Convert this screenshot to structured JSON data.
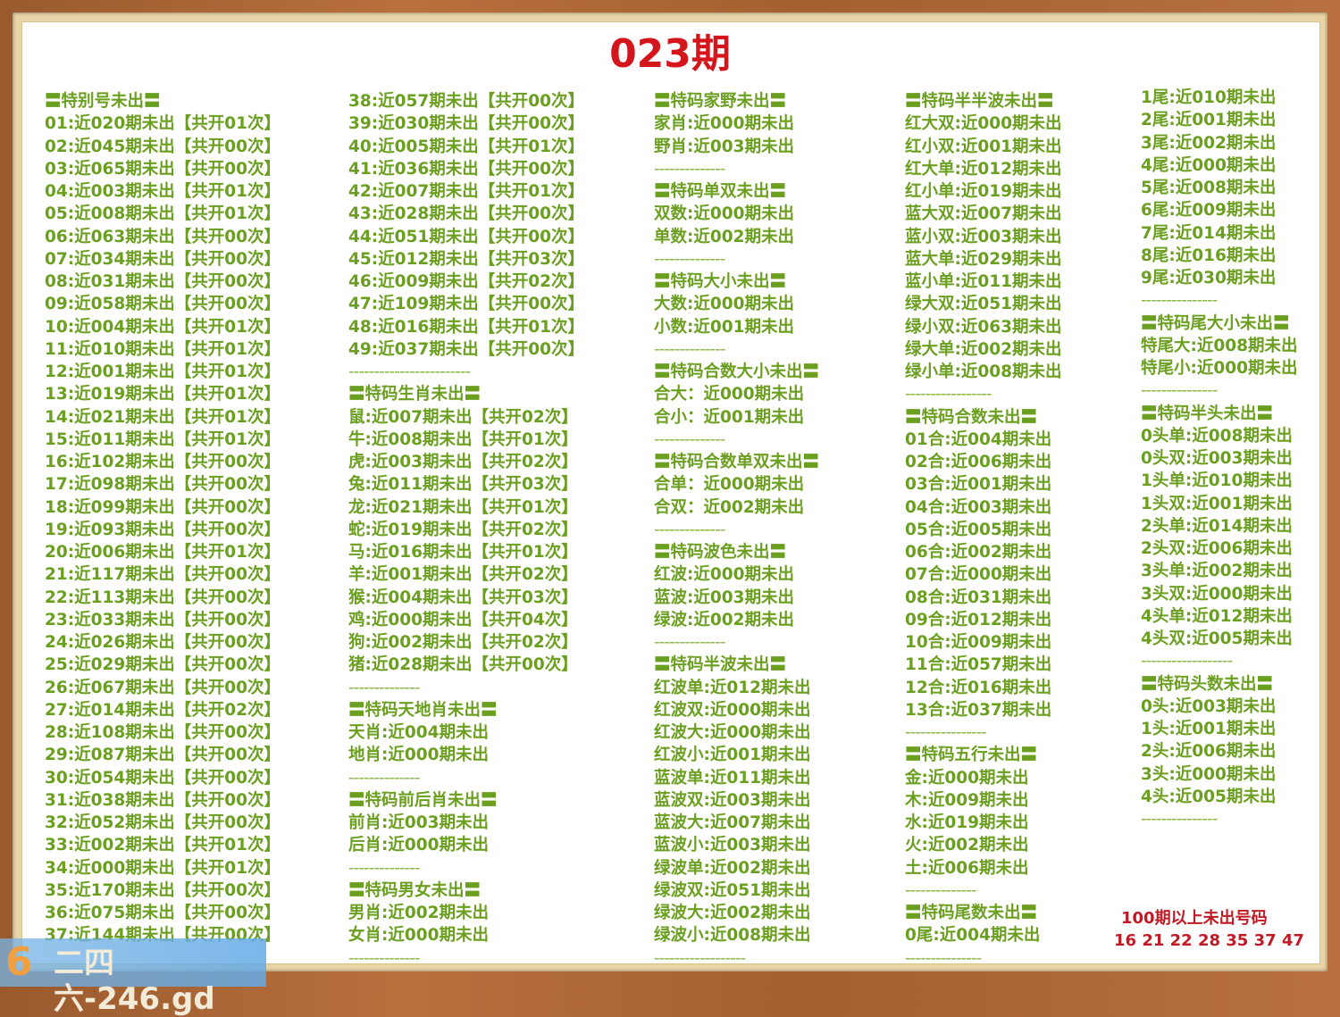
{
  "title": "023期",
  "columns": [
    [
      "〓特别号未出〓",
      "01:近020期未出【共开01次】",
      "02:近045期未出【共开00次】",
      "03:近065期未出【共开00次】",
      "04:近003期未出【共开01次】",
      "05:近008期未出【共开01次】",
      "06:近063期未出【共开00次】",
      "07:近034期未出【共开00次】",
      "08:近031期未出【共开00次】",
      "09:近058期未出【共开00次】",
      "10:近004期未出【共开01次】",
      "11:近010期未出【共开01次】",
      "12:近001期未出【共开01次】",
      "13:近019期未出【共开01次】",
      "14:近021期未出【共开01次】",
      "15:近011期未出【共开01次】",
      "16:近102期未出【共开00次】",
      "17:近098期未出【共开00次】",
      "18:近099期未出【共开00次】",
      "19:近093期未出【共开00次】",
      "20:近006期未出【共开01次】",
      "21:近117期未出【共开00次】",
      "22:近113期未出【共开00次】",
      "23:近033期未出【共开00次】",
      "24:近026期未出【共开00次】",
      "25:近029期未出【共开00次】",
      "26:近067期未出【共开00次】",
      "27:近014期未出【共开02次】",
      "28:近108期未出【共开00次】",
      "29:近087期未出【共开00次】",
      "30:近054期未出【共开00次】",
      "31:近038期未出【共开00次】",
      "32:近052期未出【共开00次】",
      "33:近002期未出【共开01次】",
      "34:近000期未出【共开01次】",
      "35:近170期未出【共开00次】",
      "36:近075期未出【共开00次】",
      "37:近144期未出【共开00次】"
    ],
    [
      "38:近057期未出【共开00次】",
      "39:近030期未出【共开00次】",
      "40:近005期未出【共开01次】",
      "41:近036期未出【共开00次】",
      "42:近007期未出【共开01次】",
      "43:近028期未出【共开00次】",
      "44:近051期未出【共开00次】",
      "45:近012期未出【共开03次】",
      "46:近009期未出【共开02次】",
      "47:近109期未出【共开00次】",
      "48:近016期未出【共开01次】",
      "49:近037期未出【共开00次】",
      "------------------------",
      "〓特码生肖未出〓",
      "鼠:近007期未出【共开02次】",
      "牛:近008期未出【共开01次】",
      "虎:近003期未出【共开02次】",
      "兔:近011期未出【共开03次】",
      "龙:近021期未出【共开01次】",
      "蛇:近019期未出【共开02次】",
      "马:近016期未出【共开01次】",
      "羊:近001期未出【共开02次】",
      "猴:近004期未出【共开03次】",
      "鸡:近000期未出【共开04次】",
      "狗:近002期未出【共开02次】",
      "猪:近028期未出【共开00次】",
      "--------------",
      "〓特码天地肖未出〓",
      "天肖:近004期未出",
      "地肖:近000期未出",
      "--------------",
      "〓特码前后肖未出〓",
      "前肖:近003期未出",
      "后肖:近000期未出",
      "--------------",
      "〓特码男女未出〓",
      "男肖:近002期未出",
      "女肖:近000期未出",
      "--------------"
    ],
    [
      "〓特码家野未出〓",
      "家肖:近000期未出",
      "野肖:近003期未出",
      "--------------",
      "〓特码单双未出〓",
      "双数:近000期未出",
      "单数:近002期未出",
      "--------------",
      "〓特码大小未出〓",
      "大数:近000期未出",
      "小数:近001期未出",
      "--------------",
      "〓特码合数大小未出〓",
      "合大：近000期未出",
      "合小：近001期未出",
      "--------------",
      "〓特码合数单双未出〓",
      "合单：近000期未出",
      "合双：近002期未出",
      "--------------",
      "〓特码波色未出〓",
      "红波:近000期未出",
      "蓝波:近003期未出",
      "绿波:近002期未出",
      "--------------",
      "〓特码半波未出〓",
      "红波单:近012期未出",
      "红波双:近000期未出",
      "红波大:近000期未出",
      "红波小:近001期未出",
      "蓝波单:近011期未出",
      "蓝波双:近003期未出",
      "蓝波大:近007期未出",
      "蓝波小:近003期未出",
      "绿波单:近002期未出",
      "绿波双:近051期未出",
      "绿波大:近002期未出",
      "绿波小:近008期未出",
      "------------------"
    ],
    [
      "〓特码半半波未出〓",
      "红大双:近000期未出",
      "红小双:近001期未出",
      "红大单:近012期未出",
      "红小单:近019期未出",
      "蓝大双:近007期未出",
      "蓝小双:近003期未出",
      "蓝大单:近029期未出",
      "蓝小单:近011期未出",
      "绿大双:近051期未出",
      "绿小双:近063期未出",
      "绿大单:近002期未出",
      "绿小单:近008期未出",
      "-----------------",
      "〓特码合数未出〓",
      "01合:近004期未出",
      "02合:近006期未出",
      "03合:近001期未出",
      "04合:近003期未出",
      "05合:近005期未出",
      "06合:近002期未出",
      "07合:近000期未出",
      "08合:近031期未出",
      "09合:近012期未出",
      "10合:近009期未出",
      "11合:近057期未出",
      "12合:近016期未出",
      "13合:近037期未出",
      "----------------",
      "〓特码五行未出〓",
      "金:近000期未出",
      "木:近009期未出",
      "水:近019期未出",
      "火:近002期未出",
      "土:近006期未出",
      "--------------",
      "〓特码尾数未出〓",
      "0尾:近004期未出",
      "---------------"
    ],
    [
      "1尾:近010期未出",
      "2尾:近001期未出",
      "3尾:近002期未出",
      "4尾:近000期未出",
      "5尾:近008期未出",
      "6尾:近009期未出",
      "7尾:近014期未出",
      "8尾:近016期未出",
      "9尾:近030期未出",
      "---------------",
      "〓特码尾大小未出〓",
      "特尾大:近008期未出",
      "特尾小:近000期未出",
      "---------------",
      "〓特码半头未出〓",
      "0头单:近008期未出",
      "0头双:近003期未出",
      "1头单:近010期未出",
      "1头双:近001期未出",
      "2头单:近014期未出",
      "2头双:近006期未出",
      "3头单:近002期未出",
      "3头双:近000期未出",
      "4头单:近012期未出",
      "4头双:近005期未出",
      "------------------",
      "〓特码头数未出〓",
      "0头:近003期未出",
      "1头:近001期未出",
      "2头:近006期未出",
      "3头:近000期未出",
      "4头:近005期未出",
      "---------------"
    ]
  ],
  "note": {
    "title": "100期以上未出号码",
    "numbers": "16 21 22 28 35 37 47"
  },
  "logo": {
    "mark": "6",
    "text": "二四六-246.gd"
  },
  "colors": {
    "text": "#6b9f1f",
    "title": "#d4151c",
    "note": "#c21a24"
  }
}
